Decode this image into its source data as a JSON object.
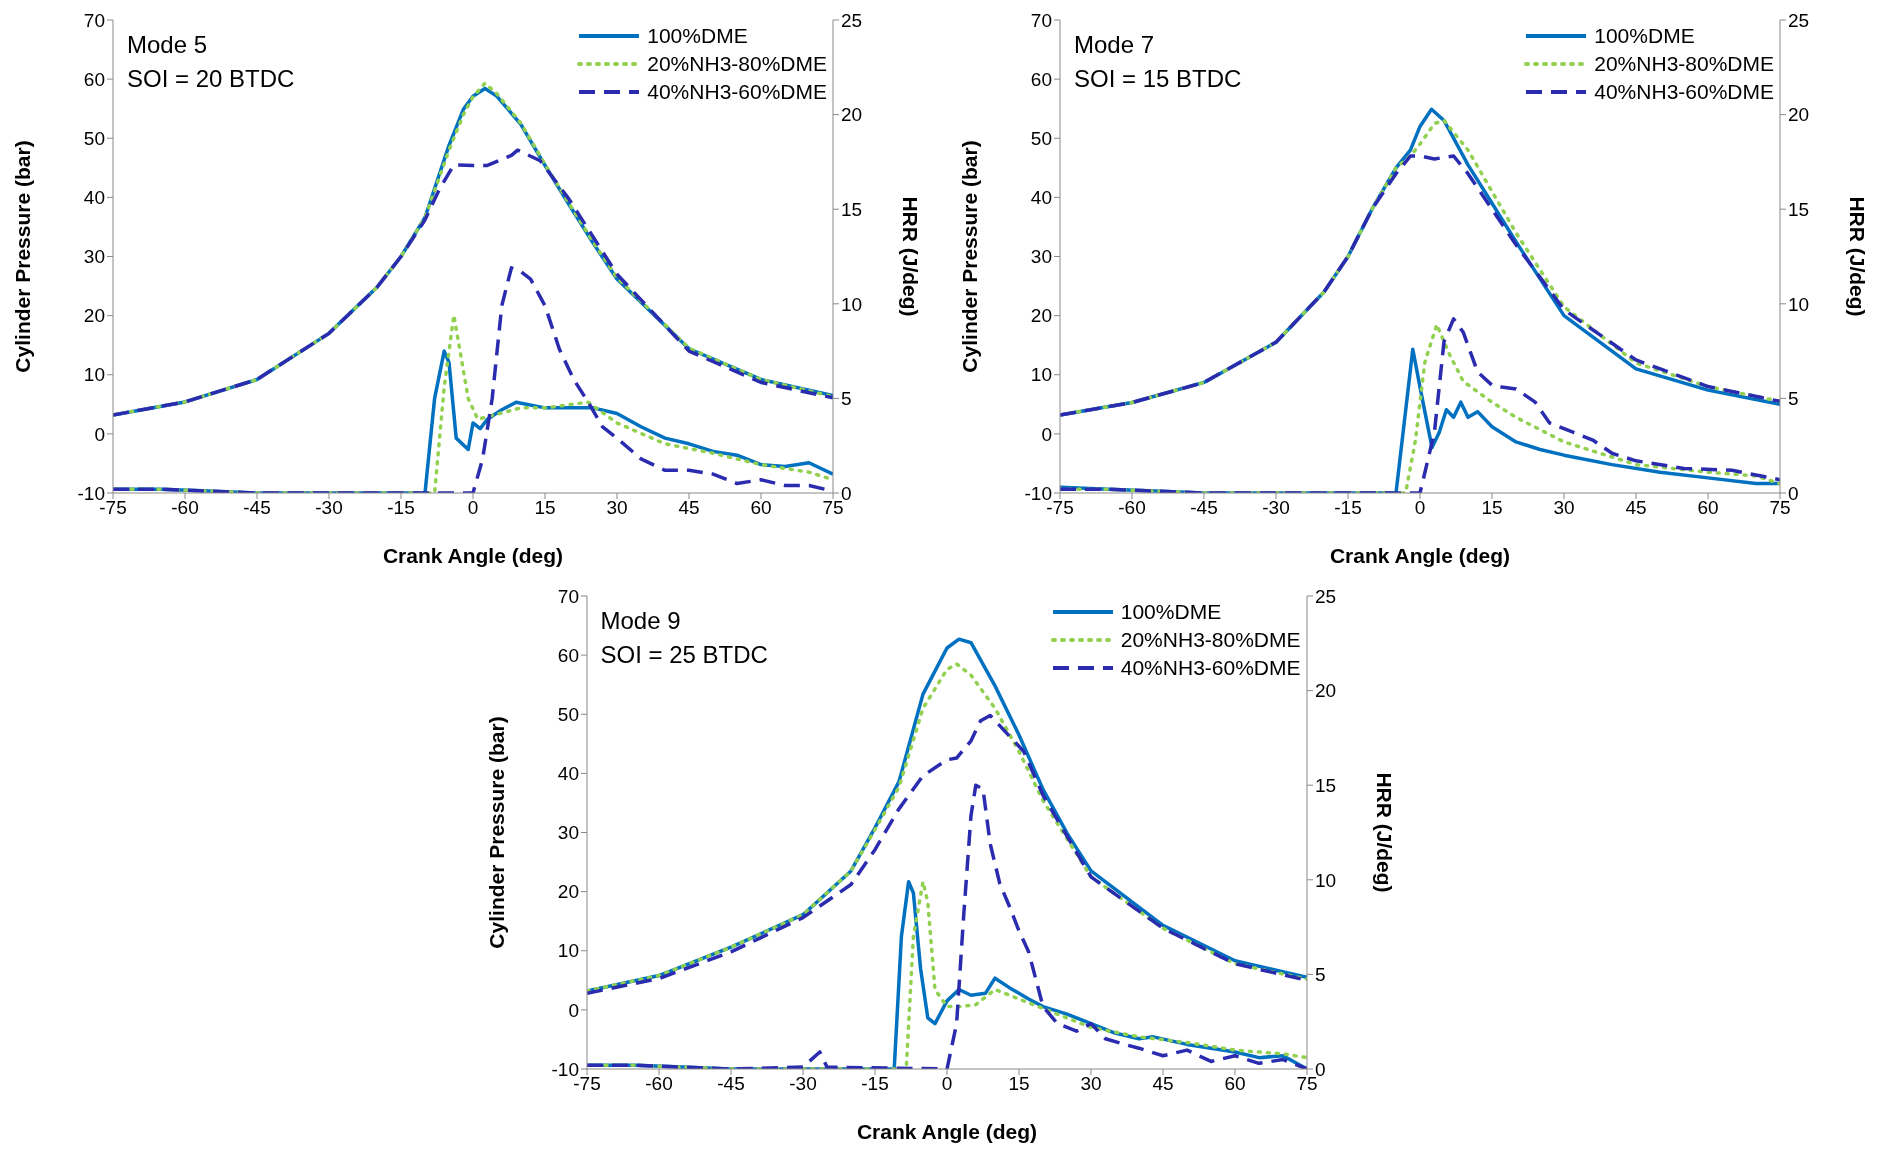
{
  "chart_data": [
    {
      "type": "line",
      "annotations": [
        "Mode 5",
        "SOI = 20 BTDC"
      ],
      "xlabel": "Crank Angle (deg)",
      "ylabel": "Cylinder Pressure (bar)",
      "y2label": "HRR (J/deg)",
      "xlim": [
        -75,
        75
      ],
      "xticks": [
        -75,
        -60,
        -45,
        -30,
        -15,
        0,
        15,
        30,
        45,
        60,
        75
      ],
      "ylim": [
        -10,
        70
      ],
      "yticks": [
        -10,
        0,
        10,
        20,
        30,
        40,
        50,
        60,
        70
      ],
      "y2lim": [
        0,
        25
      ],
      "y2ticks": [
        0,
        5,
        10,
        15,
        20,
        25
      ],
      "legend": "top right",
      "marker": "none",
      "series": [
        {
          "name": "100%DME",
          "color": "#0070c0",
          "line_style": "solid",
          "x": [
            -75,
            -60,
            -45,
            -30,
            -20,
            -15,
            -10,
            -5,
            -2,
            0,
            2.5,
            5,
            10,
            15,
            20,
            25,
            30,
            45,
            60,
            75
          ],
          "values": [
            3.2,
            5.4,
            9.2,
            17,
            24.8,
            30,
            36.6,
            48.8,
            54.9,
            57.1,
            58.4,
            57.1,
            52.3,
            45.4,
            38.8,
            32.3,
            26.2,
            14.4,
            9.2,
            6.5
          ]
        },
        {
          "name": "20%NH3-80%DME",
          "color": "#92d050",
          "line_style": "dotted",
          "x": [
            -75,
            -60,
            -45,
            -30,
            -20,
            -15,
            -10,
            -5,
            -2,
            0,
            2.5,
            5,
            10,
            15,
            20,
            25,
            30,
            45,
            60,
            75
          ],
          "values": [
            3.2,
            5.4,
            9.2,
            17,
            24.8,
            30,
            36.6,
            48,
            54,
            57,
            59.3,
            57.5,
            52.5,
            45.6,
            39,
            32.5,
            26.4,
            14.5,
            9.2,
            6.3
          ]
        },
        {
          "name": "40%NH3-60%DME",
          "color": "#2b2bb0",
          "line_style": "dashed",
          "x": [
            -75,
            -60,
            -45,
            -30,
            -20,
            -15,
            -10,
            -7,
            -4,
            0,
            3,
            8,
            9.3,
            14,
            20,
            30,
            45,
            60,
            75
          ],
          "values": [
            3.2,
            5.4,
            9.2,
            17,
            24.8,
            30,
            36.2,
            41.4,
            45.5,
            45.4,
            45.4,
            47.1,
            48,
            46.2,
            39.7,
            27,
            14,
            8.7,
            6.1
          ]
        },
        {
          "color": "#0070c0",
          "line_style": "solid",
          "axis": "y2",
          "x": [
            -75,
            -65,
            -55,
            -45,
            -10,
            -8,
            -6,
            -5,
            -3.5,
            -1,
            0,
            1.5,
            3,
            6,
            9,
            15,
            20,
            25,
            30,
            35,
            40,
            45,
            50,
            55,
            60,
            65,
            70,
            75
          ],
          "values": [
            0.2,
            0.2,
            0.1,
            0,
            0,
            5,
            7.5,
            6.9,
            2.9,
            2.3,
            3.7,
            3.4,
            3.9,
            4.4,
            4.8,
            4.5,
            4.5,
            4.5,
            4.2,
            3.5,
            2.9,
            2.6,
            2.2,
            2,
            1.5,
            1.4,
            1.6,
            1
          ]
        },
        {
          "color": "#92d050",
          "line_style": "dotted",
          "axis": "y2",
          "x": [
            -75,
            -65,
            -55,
            -45,
            -8,
            -6,
            -4,
            -2.5,
            -1,
            1,
            4,
            10,
            15,
            24,
            30,
            40,
            50,
            60,
            70,
            75
          ],
          "values": [
            0.2,
            0.2,
            0.1,
            0,
            0,
            5.6,
            9.4,
            7.2,
            5,
            3.9,
            4.1,
            4.5,
            4.5,
            4.8,
            3.7,
            2.6,
            2.1,
            1.5,
            1.1,
            0.7
          ]
        },
        {
          "color": "#2b2bb0",
          "line_style": "dashed",
          "axis": "y2",
          "x": [
            -75,
            -65,
            -55,
            -45,
            0,
            2,
            4,
            6,
            8,
            10,
            12,
            15,
            18,
            21,
            24,
            27,
            30,
            35,
            40,
            45,
            50,
            55,
            60,
            65,
            70,
            75
          ],
          "values": [
            0.2,
            0.2,
            0.1,
            0,
            0,
            1.8,
            5,
            9.9,
            11.9,
            11.7,
            11.3,
            9.9,
            7.6,
            6,
            4.8,
            3.5,
            2.9,
            1.8,
            1.2,
            1.2,
            1,
            0.5,
            0.7,
            0.4,
            0.4,
            0.1
          ]
        }
      ]
    },
    {
      "type": "line",
      "annotations": [
        "Mode 7",
        "SOI = 15 BTDC"
      ],
      "xlabel": "Crank Angle (deg)",
      "ylabel": "Cylinder Pressure (bar)",
      "y2label": "HRR (J/deg)",
      "xlim": [
        -75,
        75
      ],
      "xticks": [
        -75,
        -60,
        -45,
        -30,
        -15,
        0,
        15,
        30,
        45,
        60,
        75
      ],
      "ylim": [
        -10,
        70
      ],
      "yticks": [
        -10,
        0,
        10,
        20,
        30,
        40,
        50,
        60,
        70
      ],
      "y2lim": [
        0,
        25
      ],
      "y2ticks": [
        0,
        5,
        10,
        15,
        20,
        25
      ],
      "legend": "top right",
      "marker": "none",
      "series": [
        {
          "name": "100%DME",
          "color": "#0070c0",
          "line_style": "solid",
          "x": [
            -75,
            -60,
            -45,
            -30,
            -20,
            -15,
            -10,
            -5,
            -2,
            0,
            2.4,
            5,
            10,
            15,
            20,
            30,
            45,
            60,
            75
          ],
          "values": [
            3.2,
            5.3,
            8.7,
            15.5,
            24,
            30,
            38,
            45,
            48,
            52,
            54.9,
            53,
            45.5,
            39,
            32.5,
            20,
            11,
            7.4,
            5
          ]
        },
        {
          "name": "20%NH3-80%DME",
          "color": "#92d050",
          "line_style": "dotted",
          "x": [
            -75,
            -60,
            -45,
            -30,
            -20,
            -15,
            -10,
            -5,
            -2,
            0,
            3,
            5,
            10,
            15,
            20,
            30,
            45,
            60,
            75
          ],
          "values": [
            3.2,
            5.3,
            8.7,
            15.5,
            24,
            30,
            38,
            45,
            47,
            49,
            52.5,
            53,
            48,
            41,
            34,
            21.5,
            12,
            8,
            5.5
          ]
        },
        {
          "name": "40%NH3-60%DME",
          "color": "#2b2bb0",
          "line_style": "dashed",
          "x": [
            -75,
            -60,
            -45,
            -30,
            -20,
            -15,
            -10,
            -5,
            -2,
            0,
            3,
            7,
            10,
            15,
            20,
            30,
            45,
            60,
            75
          ],
          "values": [
            3.2,
            5.3,
            8.7,
            15.5,
            24,
            30,
            38,
            44,
            47,
            47,
            46.5,
            47,
            44,
            38,
            32,
            21,
            12.5,
            8,
            5.5
          ]
        },
        {
          "color": "#0070c0",
          "line_style": "solid",
          "axis": "y2",
          "x": [
            -75,
            -65,
            -55,
            -45,
            -5,
            -1.5,
            0,
            2.5,
            4,
            5.5,
            7,
            8.5,
            10,
            12,
            15,
            20,
            25,
            30,
            40,
            50,
            60,
            70,
            75
          ],
          "values": [
            0.3,
            0.2,
            0.1,
            0,
            0,
            7.6,
            5.6,
            2.4,
            3.2,
            4.4,
            4,
            4.8,
            4,
            4.3,
            3.5,
            2.7,
            2.3,
            2,
            1.5,
            1.1,
            0.8,
            0.5,
            0.5
          ]
        },
        {
          "color": "#92d050",
          "line_style": "dotted",
          "axis": "y2",
          "x": [
            -75,
            -65,
            -55,
            -45,
            -3,
            -1,
            1,
            3.5,
            6,
            9,
            15,
            20,
            30,
            45,
            60,
            70,
            75
          ],
          "values": [
            0.2,
            0.2,
            0.1,
            0,
            0,
            2.7,
            6.9,
            8.9,
            7.4,
            5.9,
            4.8,
            4,
            2.7,
            1.5,
            1.1,
            0.9,
            0.5
          ]
        },
        {
          "color": "#2b2bb0",
          "line_style": "dashed",
          "axis": "y2",
          "x": [
            -75,
            -65,
            -55,
            -45,
            0,
            3,
            5,
            7,
            9,
            12,
            15,
            17,
            20,
            24,
            27,
            32,
            36,
            40,
            45,
            55,
            65,
            75
          ],
          "values": [
            0.2,
            0.2,
            0.1,
            0,
            0,
            3.2,
            8,
            9.2,
            8.5,
            6.4,
            5.7,
            5.6,
            5.5,
            4.8,
            3.7,
            3.2,
            2.8,
            2.1,
            1.7,
            1.3,
            1.2,
            0.7
          ]
        }
      ]
    },
    {
      "type": "line",
      "annotations": [
        "Mode 9",
        "SOI = 25 BTDC"
      ],
      "xlabel": "Crank Angle (deg)",
      "ylabel": "Cylinder Pressure (bar)",
      "y2label": "HRR (J/deg)",
      "xlim": [
        -75,
        75
      ],
      "xticks": [
        -75,
        -60,
        -45,
        -30,
        -15,
        0,
        15,
        30,
        45,
        60,
        75
      ],
      "ylim": [
        -10,
        70
      ],
      "yticks": [
        -10,
        0,
        10,
        20,
        30,
        40,
        50,
        60,
        70
      ],
      "y2lim": [
        0,
        25
      ],
      "y2ticks": [
        0,
        5,
        10,
        15,
        20,
        25
      ],
      "legend": "top right",
      "marker": "none",
      "series": [
        {
          "name": "100%DME",
          "color": "#0070c0",
          "line_style": "solid",
          "x": [
            -75,
            -60,
            -45,
            -30,
            -20,
            -15,
            -10,
            -5,
            0,
            2.5,
            5,
            10,
            15,
            20,
            25,
            30,
            45,
            60,
            75
          ],
          "values": [
            3.2,
            5.8,
            10.6,
            16.1,
            23.5,
            30.8,
            38.6,
            53.4,
            61.2,
            62.7,
            62.1,
            54.8,
            46.5,
            37.3,
            29.9,
            23.5,
            14.3,
            8.3,
            5.5
          ]
        },
        {
          "name": "20%NH3-80%DME",
          "color": "#92d050",
          "line_style": "dotted",
          "x": [
            -75,
            -60,
            -45,
            -30,
            -20,
            -15,
            -10,
            -5,
            0,
            2,
            5,
            10,
            15,
            20,
            30,
            45,
            60,
            75
          ],
          "values": [
            3.2,
            5.8,
            10.6,
            16.1,
            23.5,
            30.5,
            37.7,
            51,
            57.6,
            58.5,
            56.6,
            51,
            43.7,
            35.4,
            22.5,
            13.8,
            7.8,
            5.2
          ]
        },
        {
          "name": "40%NH3-60%DME",
          "color": "#2b2bb0",
          "line_style": "dashed",
          "x": [
            -75,
            -60,
            -45,
            -30,
            -20,
            -15,
            -10,
            -5,
            0,
            2,
            5,
            7,
            9,
            16,
            20,
            30,
            45,
            60,
            75
          ],
          "values": [
            2.8,
            5.3,
            9.8,
            15.6,
            21.2,
            27.1,
            34,
            39.6,
            42.3,
            42.6,
            45.5,
            48.9,
            49.8,
            43.7,
            36.3,
            22.5,
            13.8,
            7.8,
            5
          ]
        },
        {
          "color": "#0070c0",
          "line_style": "solid",
          "axis": "y2",
          "x": [
            -75,
            -65,
            -55,
            -45,
            -11,
            -9.5,
            -8,
            -7,
            -5.5,
            -4,
            -2.5,
            0,
            2.5,
            5,
            8,
            10,
            13,
            17,
            20,
            25,
            30,
            35,
            40,
            43,
            50,
            55,
            60,
            65,
            70,
            75
          ],
          "values": [
            0.2,
            0.2,
            0.1,
            0,
            0,
            7,
            9.9,
            9.3,
            5.3,
            2.7,
            2.4,
            3.6,
            4.2,
            3.9,
            4,
            4.8,
            4.3,
            3.7,
            3.3,
            2.9,
            2.4,
            1.9,
            1.6,
            1.7,
            1.3,
            1.1,
            0.9,
            0.6,
            0.7,
            0
          ]
        },
        {
          "color": "#92d050",
          "line_style": "dotted",
          "axis": "y2",
          "x": [
            -75,
            -65,
            -55,
            -45,
            -8.5,
            -7,
            -5,
            -4,
            -2.5,
            0,
            3,
            6,
            10,
            15,
            20,
            30,
            40,
            50,
            60,
            70,
            75
          ],
          "values": [
            0.2,
            0.2,
            0.1,
            0,
            0,
            7,
            9.9,
            8.8,
            4.2,
            3.3,
            3.3,
            3.4,
            4.2,
            3.7,
            3.2,
            2.2,
            1.7,
            1.4,
            1,
            0.8,
            0.6
          ]
        },
        {
          "color": "#2b2bb0",
          "line_style": "dashed",
          "axis": "y2",
          "x": [
            -75,
            -65,
            -55,
            -45,
            -30,
            -26.5,
            -25,
            0,
            2,
            3.5,
            5,
            6,
            7.5,
            9,
            11,
            13,
            15,
            17,
            20,
            23,
            27,
            30,
            33,
            37,
            40,
            45,
            50,
            55,
            60,
            65,
            70,
            75
          ],
          "values": [
            0.2,
            0.2,
            0.1,
            0,
            0.1,
            0.9,
            0.1,
            0,
            2.4,
            8.2,
            13.4,
            15,
            14.8,
            11.9,
            9.8,
            8.6,
            7.3,
            6.2,
            3.3,
            2.4,
            2,
            2.4,
            1.6,
            1.3,
            1.1,
            0.7,
            1,
            0.4,
            0.7,
            0.3,
            0.5,
            0
          ]
        }
      ]
    }
  ]
}
